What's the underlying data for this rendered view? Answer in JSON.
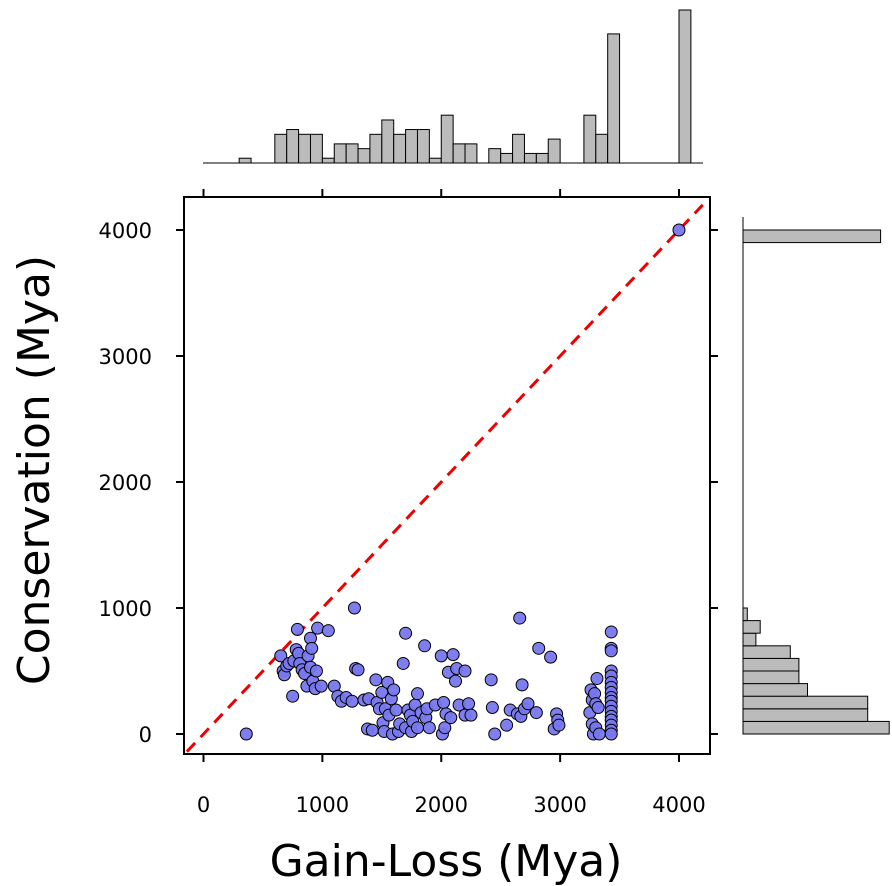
{
  "chart_data": {
    "type": "scatter",
    "xlabel": "Gain-Loss (Mya)",
    "ylabel": "Conservation (Mya)",
    "xlim": [
      -150,
      4250
    ],
    "ylim": [
      -150,
      4250
    ],
    "xticks": [
      0,
      1000,
      2000,
      3000,
      4000
    ],
    "yticks": [
      0,
      1000,
      2000,
      3000,
      4000
    ],
    "reference_line": {
      "type": "y=x",
      "color": "#ee0000",
      "style": "dashed"
    },
    "marker_fill": "#7777ee",
    "marker_edge": "#000000",
    "histogram_fill": "#bbbbbb",
    "x_histogram": {
      "bins": [
        {
          "x0": 300,
          "x1": 400,
          "count": 1
        },
        {
          "x0": 600,
          "x1": 700,
          "count": 6
        },
        {
          "x0": 700,
          "x1": 800,
          "count": 7
        },
        {
          "x0": 800,
          "x1": 900,
          "count": 6
        },
        {
          "x0": 900,
          "x1": 1000,
          "count": 6
        },
        {
          "x0": 1000,
          "x1": 1100,
          "count": 1
        },
        {
          "x0": 1100,
          "x1": 1200,
          "count": 4
        },
        {
          "x0": 1200,
          "x1": 1300,
          "count": 4
        },
        {
          "x0": 1300,
          "x1": 1400,
          "count": 3
        },
        {
          "x0": 1400,
          "x1": 1500,
          "count": 6
        },
        {
          "x0": 1500,
          "x1": 1600,
          "count": 9
        },
        {
          "x0": 1600,
          "x1": 1700,
          "count": 6
        },
        {
          "x0": 1700,
          "x1": 1800,
          "count": 7
        },
        {
          "x0": 1800,
          "x1": 1900,
          "count": 7
        },
        {
          "x0": 1900,
          "x1": 2000,
          "count": 1
        },
        {
          "x0": 2000,
          "x1": 2100,
          "count": 10
        },
        {
          "x0": 2100,
          "x1": 2200,
          "count": 4
        },
        {
          "x0": 2200,
          "x1": 2300,
          "count": 4
        },
        {
          "x0": 2400,
          "x1": 2500,
          "count": 3
        },
        {
          "x0": 2500,
          "x1": 2600,
          "count": 2
        },
        {
          "x0": 2600,
          "x1": 2700,
          "count": 6
        },
        {
          "x0": 2700,
          "x1": 2800,
          "count": 2
        },
        {
          "x0": 2800,
          "x1": 2900,
          "count": 2
        },
        {
          "x0": 2900,
          "x1": 3000,
          "count": 5
        },
        {
          "x0": 3200,
          "x1": 3300,
          "count": 10
        },
        {
          "x0": 3300,
          "x1": 3400,
          "count": 6
        },
        {
          "x0": 3400,
          "x1": 3500,
          "count": 27
        },
        {
          "x0": 4000,
          "x1": 4100,
          "count": 32
        }
      ]
    },
    "y_histogram": {
      "bins": [
        {
          "y0": 0,
          "y1": 100,
          "count": 34
        },
        {
          "y0": 100,
          "y1": 200,
          "count": 29
        },
        {
          "y0": 200,
          "y1": 300,
          "count": 29
        },
        {
          "y0": 300,
          "y1": 400,
          "count": 15
        },
        {
          "y0": 400,
          "y1": 500,
          "count": 13
        },
        {
          "y0": 500,
          "y1": 600,
          "count": 13
        },
        {
          "y0": 600,
          "y1": 700,
          "count": 11
        },
        {
          "y0": 700,
          "y1": 800,
          "count": 3
        },
        {
          "y0": 800,
          "y1": 900,
          "count": 4
        },
        {
          "y0": 900,
          "y1": 1000,
          "count": 1
        },
        {
          "y0": 3900,
          "y1": 4000,
          "count": 32
        }
      ]
    },
    "points": [
      [
        360,
        0
      ],
      [
        650,
        620
      ],
      [
        670,
        500
      ],
      [
        680,
        470
      ],
      [
        700,
        540
      ],
      [
        720,
        560
      ],
      [
        750,
        300
      ],
      [
        760,
        580
      ],
      [
        780,
        670
      ],
      [
        790,
        830
      ],
      [
        800,
        640
      ],
      [
        810,
        560
      ],
      [
        830,
        510
      ],
      [
        850,
        480
      ],
      [
        870,
        380
      ],
      [
        880,
        620
      ],
      [
        900,
        760
      ],
      [
        900,
        530
      ],
      [
        910,
        680
      ],
      [
        920,
        420
      ],
      [
        940,
        360
      ],
      [
        950,
        500
      ],
      [
        960,
        840
      ],
      [
        990,
        380
      ],
      [
        1050,
        820
      ],
      [
        1100,
        380
      ],
      [
        1130,
        300
      ],
      [
        1160,
        260
      ],
      [
        1200,
        290
      ],
      [
        1250,
        260
      ],
      [
        1270,
        1000
      ],
      [
        1280,
        520
      ],
      [
        1300,
        510
      ],
      [
        1350,
        270
      ],
      [
        1380,
        40
      ],
      [
        1390,
        280
      ],
      [
        1420,
        30
      ],
      [
        1450,
        430
      ],
      [
        1460,
        250
      ],
      [
        1480,
        200
      ],
      [
        1500,
        330
      ],
      [
        1510,
        90
      ],
      [
        1520,
        20
      ],
      [
        1530,
        200
      ],
      [
        1550,
        410
      ],
      [
        1560,
        150
      ],
      [
        1580,
        280
      ],
      [
        1590,
        0
      ],
      [
        1600,
        350
      ],
      [
        1620,
        190
      ],
      [
        1640,
        20
      ],
      [
        1650,
        80
      ],
      [
        1680,
        560
      ],
      [
        1700,
        800
      ],
      [
        1700,
        50
      ],
      [
        1720,
        190
      ],
      [
        1740,
        150
      ],
      [
        1750,
        20
      ],
      [
        1760,
        100
      ],
      [
        1780,
        230
      ],
      [
        1800,
        50
      ],
      [
        1800,
        320
      ],
      [
        1830,
        170
      ],
      [
        1860,
        700
      ],
      [
        1870,
        130
      ],
      [
        1880,
        200
      ],
      [
        1900,
        50
      ],
      [
        1950,
        230
      ],
      [
        2000,
        620
      ],
      [
        2010,
        0
      ],
      [
        2020,
        250
      ],
      [
        2030,
        50
      ],
      [
        2040,
        160
      ],
      [
        2060,
        490
      ],
      [
        2080,
        130
      ],
      [
        2100,
        630
      ],
      [
        2120,
        420
      ],
      [
        2130,
        520
      ],
      [
        2150,
        230
      ],
      [
        2200,
        500
      ],
      [
        2200,
        150
      ],
      [
        2230,
        240
      ],
      [
        2250,
        150
      ],
      [
        2420,
        430
      ],
      [
        2430,
        210
      ],
      [
        2450,
        0
      ],
      [
        2550,
        70
      ],
      [
        2580,
        190
      ],
      [
        2640,
        160
      ],
      [
        2660,
        920
      ],
      [
        2670,
        140
      ],
      [
        2680,
        390
      ],
      [
        2700,
        200
      ],
      [
        2730,
        240
      ],
      [
        2800,
        170
      ],
      [
        2820,
        680
      ],
      [
        2920,
        610
      ],
      [
        2950,
        40
      ],
      [
        2970,
        160
      ],
      [
        2980,
        110
      ],
      [
        2990,
        70
      ],
      [
        3250,
        170
      ],
      [
        3260,
        350
      ],
      [
        3270,
        270
      ],
      [
        3270,
        80
      ],
      [
        3280,
        0
      ],
      [
        3290,
        320
      ],
      [
        3300,
        240
      ],
      [
        3300,
        50
      ],
      [
        3310,
        440
      ],
      [
        3320,
        210
      ],
      [
        3330,
        0
      ],
      [
        3430,
        810
      ],
      [
        3430,
        680
      ],
      [
        3430,
        660
      ],
      [
        3430,
        500
      ],
      [
        3430,
        460
      ],
      [
        3430,
        410
      ],
      [
        3430,
        370
      ],
      [
        3430,
        330
      ],
      [
        3430,
        290
      ],
      [
        3430,
        260
      ],
      [
        3430,
        220
      ],
      [
        3430,
        180
      ],
      [
        3430,
        140
      ],
      [
        3430,
        110
      ],
      [
        3430,
        70
      ],
      [
        3430,
        30
      ],
      [
        3430,
        0
      ],
      [
        4000,
        4000
      ]
    ]
  }
}
